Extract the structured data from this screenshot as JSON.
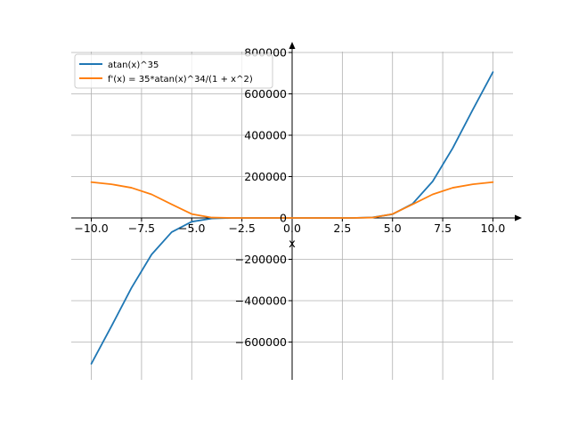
{
  "chart_data": {
    "type": "line",
    "title": "",
    "xlabel": "x",
    "ylabel": "",
    "xlim": [
      -11.0,
      11.0
    ],
    "ylim": [
      -780000,
      800000
    ],
    "grid": true,
    "legend_position": "top-left",
    "x_ticks": [
      -10.0,
      -7.5,
      -5.0,
      -2.5,
      0.0,
      2.5,
      5.0,
      7.5,
      10.0
    ],
    "x_tick_labels": [
      "−10.0",
      "−7.5",
      "−5.0",
      "−2.5",
      "0.0",
      "2.5",
      "5.0",
      "7.5",
      "10.0"
    ],
    "y_ticks": [
      -600000,
      -400000,
      -200000,
      0,
      200000,
      400000,
      600000,
      800000
    ],
    "y_tick_labels": [
      "−600000",
      "−400000",
      "−200000",
      "0",
      "200000",
      "400000",
      "600000",
      "800000"
    ],
    "x": [
      -10,
      -9,
      -8,
      -7,
      -6,
      -5,
      -4,
      -3,
      -2.5,
      -2,
      -1,
      0,
      1,
      2,
      2.5,
      3,
      4,
      5,
      6,
      7,
      8,
      9,
      10
    ],
    "series": [
      {
        "name": "atan(x)^35",
        "color": "#1f77b4",
        "values": [
          -705000,
          -524000,
          -338000,
          -177000,
          -68500,
          -18000,
          -2500,
          -140,
          -12,
          -0.4,
          0,
          0,
          0,
          0.4,
          12,
          140,
          2500,
          18000,
          68500,
          177000,
          338000,
          524000,
          705000
        ]
      },
      {
        "name": "f'(x) = 35*atan(x)^34/(1 + x^2)",
        "color": "#ff7f0e",
        "values": [
          173000,
          163000,
          146000,
          114000,
          66000,
          19000,
          1800,
          48,
          3,
          0,
          0,
          0,
          0,
          0,
          3,
          48,
          1800,
          19000,
          66000,
          114000,
          146000,
          163000,
          173000
        ]
      }
    ]
  }
}
